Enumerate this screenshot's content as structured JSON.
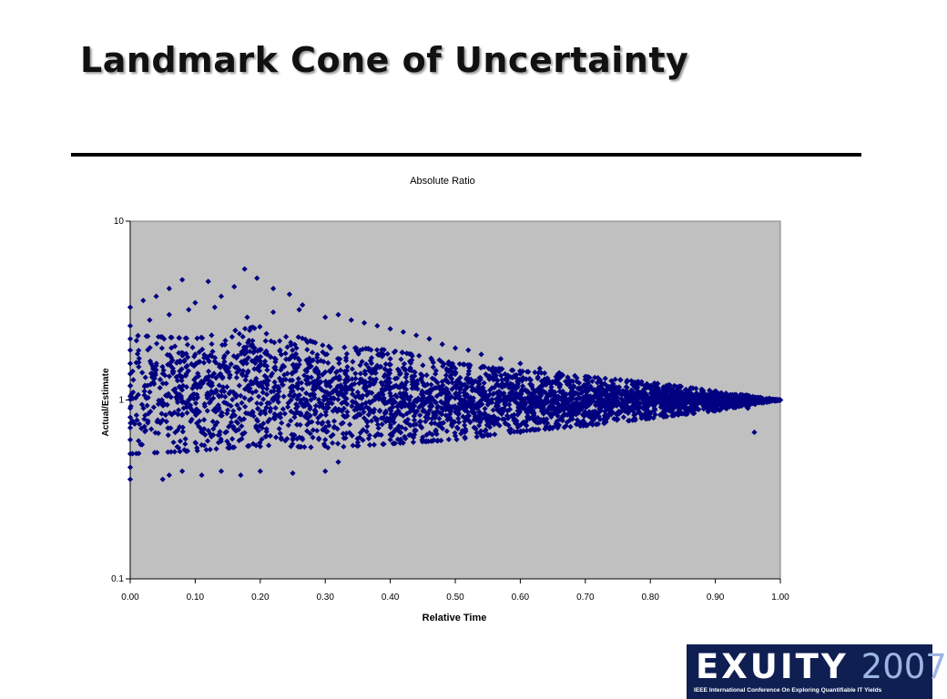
{
  "slide": {
    "title": "Landmark Cone of Uncertainty"
  },
  "logo": {
    "wordmark": "EXUITY",
    "year": "2007",
    "tagline": "IEEE International Conference On Exploring Quantifiable IT Yields"
  },
  "chart_data": {
    "type": "scatter",
    "title": "Absolute Ratio",
    "xlabel": "Relative Time",
    "ylabel": "Actual/Estimate",
    "xlim": [
      0,
      1
    ],
    "ylim": [
      0.1,
      10
    ],
    "yscale": "log",
    "grid": false,
    "legend": "none",
    "x_ticks": [
      "0.00",
      "0.10",
      "0.20",
      "0.30",
      "0.40",
      "0.50",
      "0.60",
      "0.70",
      "0.80",
      "0.90",
      "1.00"
    ],
    "y_ticks": [
      "0.1",
      "1",
      "10"
    ],
    "marker_color": "#000080",
    "plot_background": "#c0c0c0",
    "series": [
      {
        "points": [
          [
            0.0,
            3.3
          ],
          [
            0.0,
            2.6
          ],
          [
            0.0,
            2.2
          ],
          [
            0.0,
            1.9
          ],
          [
            0.0,
            1.6
          ],
          [
            0.0,
            1.4
          ],
          [
            0.0,
            1.2
          ],
          [
            0.0,
            1.05
          ],
          [
            0.0,
            0.9
          ],
          [
            0.0,
            0.8
          ],
          [
            0.0,
            0.7
          ],
          [
            0.0,
            0.6
          ],
          [
            0.0,
            0.5
          ],
          [
            0.0,
            0.42
          ],
          [
            0.0,
            0.36
          ],
          [
            0.02,
            3.6
          ],
          [
            0.04,
            3.8
          ],
          [
            0.06,
            4.2
          ],
          [
            0.08,
            4.7
          ],
          [
            0.1,
            3.5
          ],
          [
            0.12,
            4.6
          ],
          [
            0.14,
            3.8
          ],
          [
            0.16,
            4.3
          ],
          [
            0.176,
            5.4
          ],
          [
            0.195,
            4.8
          ],
          [
            0.22,
            4.2
          ],
          [
            0.245,
            3.9
          ],
          [
            0.265,
            3.4
          ],
          [
            0.03,
            2.8
          ],
          [
            0.06,
            3.0
          ],
          [
            0.09,
            3.2
          ],
          [
            0.13,
            3.3
          ],
          [
            0.18,
            2.9
          ],
          [
            0.22,
            3.1
          ],
          [
            0.26,
            3.2
          ],
          [
            0.3,
            2.9
          ],
          [
            0.32,
            3.0
          ],
          [
            0.34,
            2.8
          ],
          [
            0.36,
            2.7
          ],
          [
            0.38,
            2.6
          ],
          [
            0.4,
            2.5
          ],
          [
            0.42,
            2.4
          ],
          [
            0.44,
            2.3
          ],
          [
            0.46,
            2.2
          ],
          [
            0.48,
            2.05
          ],
          [
            0.5,
            1.95
          ],
          [
            0.52,
            1.9
          ],
          [
            0.54,
            1.8
          ],
          [
            0.57,
            1.7
          ],
          [
            0.6,
            1.6
          ],
          [
            0.63,
            1.5
          ],
          [
            0.66,
            1.42
          ],
          [
            0.7,
            1.35
          ],
          [
            0.74,
            1.28
          ],
          [
            0.78,
            1.22
          ],
          [
            0.82,
            1.18
          ],
          [
            0.86,
            1.13
          ],
          [
            0.9,
            1.09
          ],
          [
            0.94,
            1.05
          ],
          [
            0.97,
            1.03
          ],
          [
            1.0,
            1.0
          ],
          [
            0.05,
            0.36
          ],
          [
            0.06,
            0.38
          ],
          [
            0.08,
            0.4
          ],
          [
            0.11,
            0.38
          ],
          [
            0.14,
            0.4
          ],
          [
            0.17,
            0.38
          ],
          [
            0.2,
            0.4
          ],
          [
            0.25,
            0.39
          ],
          [
            0.3,
            0.4
          ],
          [
            0.32,
            0.45
          ],
          [
            0.2,
            0.55
          ],
          [
            0.25,
            0.6
          ],
          [
            0.3,
            0.6
          ],
          [
            0.35,
            0.58
          ],
          [
            0.4,
            0.6
          ],
          [
            0.45,
            0.62
          ],
          [
            0.5,
            0.63
          ],
          [
            0.55,
            0.64
          ],
          [
            0.6,
            0.66
          ],
          [
            0.65,
            0.7
          ],
          [
            0.7,
            0.74
          ],
          [
            0.75,
            0.78
          ],
          [
            0.8,
            0.8
          ],
          [
            0.85,
            0.84
          ],
          [
            0.9,
            0.87
          ],
          [
            0.95,
            0.9
          ],
          [
            0.96,
            0.66
          ],
          [
            0.1,
            1.8
          ],
          [
            0.2,
            1.9
          ],
          [
            0.3,
            1.8
          ],
          [
            0.4,
            1.7
          ],
          [
            0.5,
            1.5
          ],
          [
            0.6,
            1.4
          ],
          [
            0.7,
            1.3
          ],
          [
            0.8,
            1.2
          ],
          [
            0.9,
            1.1
          ]
        ]
      }
    ],
    "generated_cloud": {
      "count": 3600,
      "seed": 7,
      "upper_envelope": [
        [
          0,
          2.3
        ],
        [
          0.1,
          2.2
        ],
        [
          0.2,
          2.6
        ],
        [
          0.3,
          2.0
        ],
        [
          0.4,
          1.9
        ],
        [
          0.5,
          1.6
        ],
        [
          0.6,
          1.45
        ],
        [
          0.7,
          1.35
        ],
        [
          0.8,
          1.25
        ],
        [
          0.9,
          1.12
        ],
        [
          1.0,
          1.0
        ]
      ],
      "lower_envelope": [
        [
          0,
          0.5
        ],
        [
          0.1,
          0.52
        ],
        [
          0.2,
          0.56
        ],
        [
          0.3,
          0.54
        ],
        [
          0.4,
          0.57
        ],
        [
          0.5,
          0.6
        ],
        [
          0.6,
          0.67
        ],
        [
          0.7,
          0.72
        ],
        [
          0.8,
          0.79
        ],
        [
          0.9,
          0.87
        ],
        [
          1.0,
          1.0
        ]
      ]
    }
  }
}
